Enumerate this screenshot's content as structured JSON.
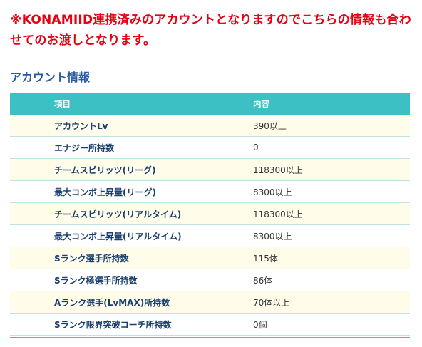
{
  "notice": "※KONAMIID連携済みのアカウントとなりますのでこちらの情報も合わせてのお渡しとなります。",
  "section_title": "アカウント情報",
  "table": {
    "headers": [
      "項目",
      "内容"
    ],
    "rows": [
      {
        "label": "アカウントLv",
        "value": "390以上"
      },
      {
        "label": "エナジー所持数",
        "value": "0"
      },
      {
        "label": "チームスピリッツ(リーグ)",
        "value": "118300以上"
      },
      {
        "label": "最大コンボ上昇量(リーグ)",
        "value": "8300以上"
      },
      {
        "label": "チームスピリッツ(リアルタイム)",
        "value": "118300以上"
      },
      {
        "label": "最大コンボ上昇量(リアルタイム)",
        "value": "8300以上"
      },
      {
        "label": "Sランク選手所持数",
        "value": "115体"
      },
      {
        "label": "Sランク極選手所持数",
        "value": "86体"
      },
      {
        "label": "Aランク選手(LvMAX)所持数",
        "value": "70体以上"
      },
      {
        "label": "Sランク限界突破コーチ所持数",
        "value": "0個"
      }
    ]
  },
  "colors": {
    "notice": "#e60012",
    "section_title": "#2a5aa0",
    "header_bg": "#3cc0c3",
    "row_alt_bg": "#fffdea",
    "label_text": "#1b3f6e"
  }
}
